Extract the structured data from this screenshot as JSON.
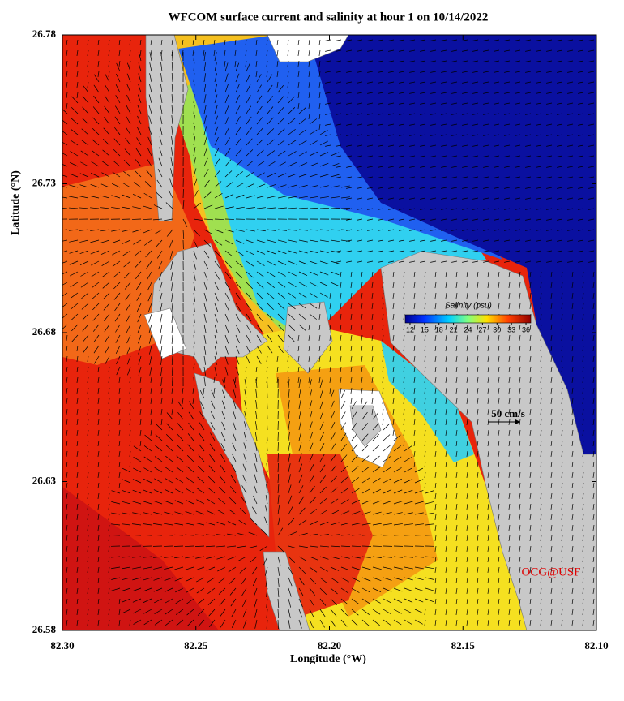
{
  "chart_data": {
    "type": "map",
    "title": "WFCOM surface current and salinity at hour 1 on 10/14/2022",
    "x_label": "Longitude (°W)",
    "y_label": "Latitude (°N)",
    "xlim": [
      82.3,
      82.1
    ],
    "ylim": [
      26.58,
      26.78
    ],
    "xticks": [
      {
        "value": 82.3,
        "label": "82.30"
      },
      {
        "value": 82.25,
        "label": "82.25"
      },
      {
        "value": 82.2,
        "label": "82.20"
      },
      {
        "value": 82.15,
        "label": "82.15"
      },
      {
        "value": 82.1,
        "label": "82.10"
      }
    ],
    "yticks": [
      26.78,
      26.73,
      26.68,
      26.63,
      26.58
    ],
    "colorbar": {
      "title": "Salinity (psu)",
      "clim": [
        11,
        37
      ],
      "ticks": [
        12,
        15,
        18,
        21,
        24,
        27,
        30,
        33,
        36
      ]
    },
    "scale_label": "50 cm/s",
    "credit": "OCG@USF"
  }
}
